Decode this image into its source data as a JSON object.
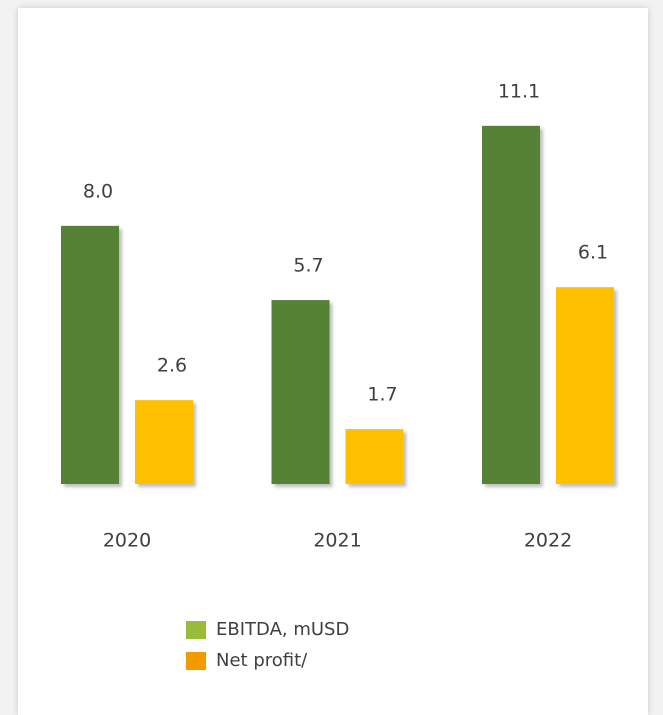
{
  "chart_data": {
    "type": "bar",
    "categories": [
      "2020",
      "2021",
      "2022"
    ],
    "series": [
      {
        "name": "EBITDA, mUSD",
        "color": "#548235",
        "legend_color": "#9bbb3b",
        "values": [
          8,
          5.7,
          11.1
        ],
        "value_labels": [
          "8.0",
          "5.7",
          "11.1"
        ]
      },
      {
        "name": "Net profit/",
        "color": "#ffc000",
        "legend_color": "#f29b00",
        "values": [
          2.6,
          1.7,
          6.1
        ],
        "value_labels": [
          "2.6",
          "1.7",
          "6.1"
        ]
      }
    ],
    "ylim": [
      0,
      15
    ],
    "grid": false
  }
}
